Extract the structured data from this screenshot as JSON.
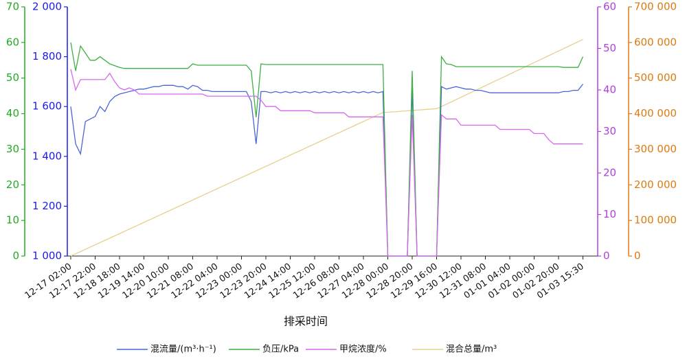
{
  "chart_data": {
    "type": "line",
    "x_label": "排采时间",
    "categories": [
      "12-17 02:00",
      null,
      null,
      null,
      null,
      "12-17 22:00",
      null,
      null,
      null,
      null,
      "12-18 18:00",
      null,
      null,
      null,
      null,
      "12-19 14:00",
      null,
      null,
      null,
      null,
      "12-20 10:00",
      null,
      null,
      null,
      null,
      "12-21 08:00",
      null,
      null,
      null,
      null,
      "12-22 04:00",
      null,
      null,
      null,
      null,
      "12-23 00:00",
      null,
      null,
      null,
      null,
      "12-23 20:00",
      null,
      null,
      null,
      null,
      "12-24 14:00",
      null,
      null,
      null,
      null,
      "12-25 12:00",
      null,
      null,
      null,
      null,
      "12-26 08:00",
      null,
      null,
      null,
      null,
      "12-27 04:00",
      null,
      null,
      null,
      null,
      "12-28 00:00",
      null,
      null,
      null,
      null,
      "12-28 20:00",
      null,
      null,
      null,
      null,
      "12-29 16:00",
      null,
      null,
      null,
      null,
      "12-30 12:00",
      null,
      null,
      null,
      null,
      "12-31 08:00",
      null,
      null,
      null,
      null,
      "01-01 04:00",
      null,
      null,
      null,
      null,
      "01-02 00:00",
      null,
      null,
      null,
      null,
      "01-02 20:00",
      null,
      null,
      null,
      null,
      "01-03 15:30"
    ],
    "ylim": [
      1000,
      2000
    ],
    "yticks": [
      {
        "value": 1000,
        "label": "1 000"
      },
      {
        "value": 1200,
        "label": "1 200"
      },
      {
        "value": 1400,
        "label": "1 400"
      },
      {
        "value": 1600,
        "label": "1 600"
      },
      {
        "value": 1800,
        "label": "1 800"
      },
      {
        "value": 2000,
        "label": "2 000"
      }
    ],
    "y2lim": [
      0,
      70
    ],
    "y2ticks": [
      0,
      10,
      20,
      30,
      40,
      50,
      60,
      70
    ],
    "y3lim": [
      0,
      60
    ],
    "y3ticks": [
      0,
      10,
      20,
      30,
      40,
      50,
      60
    ],
    "y4lim": [
      0,
      700000
    ],
    "y4ticks": [
      0,
      {
        "value": 100000,
        "label": "100 000"
      },
      {
        "value": 200000,
        "label": "200 000"
      },
      {
        "value": 300000,
        "label": "300 000"
      },
      {
        "value": 400000,
        "label": "400 000"
      },
      {
        "value": 500000,
        "label": "500 000"
      },
      {
        "value": 600000,
        "label": "600 000"
      },
      {
        "value": 700000,
        "label": "700 000"
      }
    ],
    "axis_colors": {
      "y": "#1a1aee",
      "y2": "#22aa22",
      "y3": "#b040e0",
      "y4": "#e07a10"
    },
    "grid": false,
    "legend": "bottom",
    "series": [
      {
        "name": "混流量/(m³·h⁻¹)",
        "color": "#4a64d8",
        "axis": "y",
        "values": [
          1600,
          1450,
          1410,
          1540,
          1550,
          1560,
          1600,
          1580,
          1620,
          1640,
          1650,
          1655,
          1660,
          1665,
          1670,
          1670,
          1675,
          1680,
          1680,
          1685,
          1685,
          1685,
          1680,
          1680,
          1670,
          1685,
          1680,
          1665,
          1665,
          1660,
          1660,
          1660,
          1660,
          1660,
          1660,
          1660,
          1660,
          1620,
          1450,
          1660,
          1660,
          1655,
          1660,
          1655,
          1660,
          1655,
          1660,
          1655,
          1660,
          1655,
          1660,
          1655,
          1660,
          1655,
          1660,
          1655,
          1660,
          1655,
          1660,
          1655,
          1660,
          1655,
          1660,
          1655,
          1660,
          1000,
          1000,
          1000,
          1000,
          1000,
          1670,
          1000,
          1000,
          1000,
          1000,
          1000,
          1680,
          1670,
          1675,
          1680,
          1675,
          1670,
          1670,
          1665,
          1665,
          1660,
          1655,
          1655,
          1655,
          1655,
          1655,
          1655,
          1655,
          1655,
          1655,
          1655,
          1655,
          1655,
          1655,
          1655,
          1655,
          1660,
          1660,
          1665,
          1665,
          1690
        ]
      },
      {
        "name": "负压/kPa",
        "color": "#3cb043",
        "axis": "y2",
        "values": [
          60,
          52,
          59,
          57,
          55,
          55,
          56,
          55,
          54,
          53.5,
          53,
          52.7,
          52.7,
          52.7,
          52.7,
          52.7,
          52.7,
          52.7,
          52.7,
          52.7,
          52.7,
          52.7,
          52.7,
          52.7,
          52.7,
          54,
          53.6,
          53.6,
          53.6,
          53.6,
          53.6,
          53.6,
          53.6,
          53.6,
          53.6,
          53.6,
          53.6,
          52,
          39,
          54,
          53.8,
          53.8,
          53.8,
          53.8,
          53.8,
          53.8,
          53.8,
          53.8,
          53.8,
          53.8,
          53.8,
          53.8,
          53.8,
          53.8,
          53.8,
          53.8,
          53.8,
          53.8,
          53.8,
          53.8,
          53.8,
          53.8,
          53.8,
          53.8,
          53.8,
          0,
          0,
          0,
          0,
          0,
          52,
          0,
          0,
          0,
          0,
          0,
          56,
          54,
          53.8,
          53.2,
          53.2,
          53.2,
          53.2,
          53.2,
          53.2,
          53.2,
          53.2,
          53.2,
          53.2,
          53.2,
          53.2,
          53.2,
          53.2,
          53.2,
          53.2,
          53.2,
          53.2,
          53.2,
          53.2,
          53.2,
          53.2,
          53,
          53,
          53,
          53,
          56
        ]
      },
      {
        "name": "甲烷浓度/%",
        "color": "#d966f0",
        "axis": "y3",
        "values": [
          45,
          40,
          42.5,
          42.5,
          42.5,
          42.5,
          42.5,
          42.5,
          44,
          42,
          40.5,
          40,
          40.5,
          40,
          39,
          39,
          39,
          39,
          39,
          39,
          39,
          39,
          39,
          39,
          39,
          39,
          39,
          39,
          38.5,
          38.5,
          38.5,
          38.5,
          38.5,
          38.5,
          38.5,
          38.5,
          38.5,
          38.5,
          38.5,
          37.5,
          36,
          36,
          36,
          35,
          35,
          35,
          35,
          35,
          35,
          35,
          34.5,
          34.5,
          34.5,
          34.5,
          34.5,
          34.5,
          34.5,
          33.5,
          33.5,
          33.5,
          33.5,
          33.5,
          33.5,
          33.5,
          33.5,
          0,
          0,
          0,
          0,
          0,
          34,
          0,
          0,
          0,
          0,
          0,
          34,
          33,
          33,
          33,
          31.5,
          31.5,
          31.5,
          31.5,
          31.5,
          31.5,
          31.5,
          31.5,
          30.5,
          30.5,
          30.5,
          30.5,
          30.5,
          30.5,
          30.5,
          29.5,
          29.5,
          29.5,
          28,
          27,
          27,
          27,
          27,
          27,
          27,
          27
        ]
      },
      {
        "name": "混合总量/m³",
        "color": "#e8cf8c",
        "axis": "y4",
        "values": [
          0,
          6300,
          12600,
          18900,
          25200,
          31500,
          37800,
          44100,
          50400,
          56700,
          63000,
          69300,
          75600,
          81900,
          88200,
          94500,
          100800,
          107100,
          113400,
          119700,
          126000,
          132300,
          138600,
          144900,
          151200,
          157500,
          163800,
          170100,
          176400,
          182700,
          189000,
          195300,
          201600,
          207900,
          214200,
          220500,
          226800,
          233100,
          239400,
          245700,
          252000,
          258300,
          264600,
          270900,
          277200,
          283500,
          289800,
          296100,
          302400,
          308700,
          315000,
          321300,
          327600,
          333900,
          340200,
          346500,
          352800,
          359100,
          365400,
          371700,
          378000,
          384300,
          390600,
          396900,
          403200,
          404000,
          405000,
          406000,
          407000,
          408000,
          409000,
          410000,
          411000,
          412000,
          413000,
          414000,
          420000,
          426500,
          433000,
          439500,
          446000,
          452500,
          459000,
          465500,
          472000,
          478500,
          485000,
          491500,
          498000,
          504500,
          511000,
          517500,
          524000,
          530500,
          537000,
          543500,
          550000,
          556500,
          563000,
          569500,
          576000,
          582500,
          589000,
          595500,
          602000,
          608500
        ]
      }
    ]
  }
}
